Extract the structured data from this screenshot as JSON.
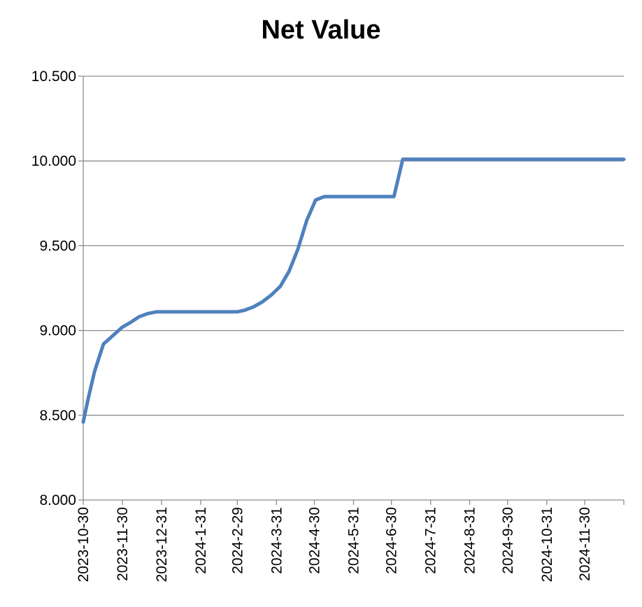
{
  "chart_data": {
    "type": "line",
    "title": "Net Value",
    "xlabel": "",
    "ylabel": "",
    "ylim": [
      8.0,
      10.5
    ],
    "xlim": [
      "2023-10-30",
      "2024-12-31"
    ],
    "grid": "horizontal",
    "legend": "none",
    "y_ticks": [
      "8.000",
      "8.500",
      "9.000",
      "9.500",
      "10.000",
      "10.500"
    ],
    "x_ticks": [
      "2023-10-30",
      "2023-11-30",
      "2023-12-31",
      "2024-1-31",
      "2024-2-29",
      "2024-3-31",
      "2024-4-30",
      "2024-5-31",
      "2024-6-30",
      "2024-7-31",
      "2024-8-31",
      "2024-9-30",
      "2024-10-31",
      "2024-11-30"
    ],
    "series": [
      {
        "color": "#4f81bd",
        "points": [
          [
            "2023-10-30",
            8.46
          ],
          [
            "2023-11-03",
            8.6
          ],
          [
            "2023-11-08",
            8.76
          ],
          [
            "2023-11-15",
            8.92
          ],
          [
            "2023-11-30",
            9.02
          ],
          [
            "2023-12-07",
            9.05
          ],
          [
            "2023-12-13",
            9.08
          ],
          [
            "2023-12-20",
            9.1
          ],
          [
            "2023-12-27",
            9.11
          ],
          [
            "2024-1-03",
            9.11
          ],
          [
            "2024-1-31",
            9.11
          ],
          [
            "2024-2-29",
            9.11
          ],
          [
            "2024-3-06",
            9.12
          ],
          [
            "2024-3-13",
            9.14
          ],
          [
            "2024-3-20",
            9.17
          ],
          [
            "2024-3-27",
            9.21
          ],
          [
            "2024-4-03",
            9.26
          ],
          [
            "2024-4-10",
            9.35
          ],
          [
            "2024-4-17",
            9.48
          ],
          [
            "2024-4-24",
            9.65
          ],
          [
            "2024-5-01",
            9.77
          ],
          [
            "2024-5-08",
            9.79
          ],
          [
            "2024-5-31",
            9.79
          ],
          [
            "2024-6-30",
            9.79
          ],
          [
            "2024-7-02",
            9.79
          ],
          [
            "2024-7-09",
            10.01
          ],
          [
            "2024-7-31",
            10.01
          ],
          [
            "2024-8-31",
            10.01
          ],
          [
            "2024-9-30",
            10.01
          ],
          [
            "2024-10-31",
            10.01
          ],
          [
            "2024-11-30",
            10.01
          ],
          [
            "2024-12-31",
            10.01
          ]
        ]
      }
    ]
  }
}
